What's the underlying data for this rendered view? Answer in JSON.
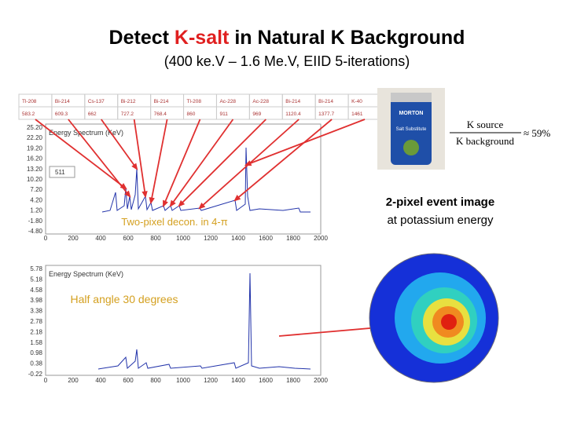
{
  "title": {
    "prefix": "Detect ",
    "highlight": "K-salt",
    "suffix": " in Natural K Background"
  },
  "subtitle": "(400 ke.V – 1.6 Me.V, EIID 5-iterations)",
  "isotope_table": {
    "rows": [
      [
        "Tl-208",
        "Bi-214",
        "Cs-137",
        "Bi-212",
        "Bi-214",
        "Tl-208",
        "Ac-228",
        "Ac-228",
        "Bi-214",
        "Bi-214",
        "K-40"
      ],
      [
        "583.2",
        "609.3",
        "662",
        "727.2",
        "768.4",
        "860",
        "911",
        "969",
        "1120.4",
        "1377.7",
        "1461"
      ]
    ]
  },
  "spectrum1": {
    "title": "Energy Spectrum (KeV)",
    "yticks": [
      "25.20",
      "22.20",
      "19.20",
      "16.20",
      "13.20",
      "10.20",
      "7.20",
      "4.20",
      "1.20",
      "-1.80",
      "-4.80"
    ],
    "xticks": [
      "0",
      "200",
      "400",
      "600",
      "800",
      "1000",
      "1200",
      "1400",
      "1600",
      "1800",
      "2000"
    ],
    "peak_label": "511",
    "annotation": "Two-pixel decon. in 4-π"
  },
  "spectrum2": {
    "title": "Energy Spectrum (KeV)",
    "yticks": [
      "5.78",
      "5.18",
      "4.58",
      "3.98",
      "3.38",
      "2.78",
      "2.18",
      "1.58",
      "0.98",
      "0.38",
      "-0.22"
    ],
    "xticks": [
      "0",
      "200",
      "400",
      "600",
      "800",
      "1000",
      "1200",
      "1400",
      "1600",
      "1800",
      "2000"
    ],
    "annotation": "Half angle 30 degrees"
  },
  "salt": {
    "brand": "MORTON",
    "product": "Salt Substitute"
  },
  "formula": {
    "numerator": "K source",
    "denominator": "K background",
    "result": "≈ 59%"
  },
  "caption": [
    "2-pixel event image",
    "at potassium energy"
  ]
}
